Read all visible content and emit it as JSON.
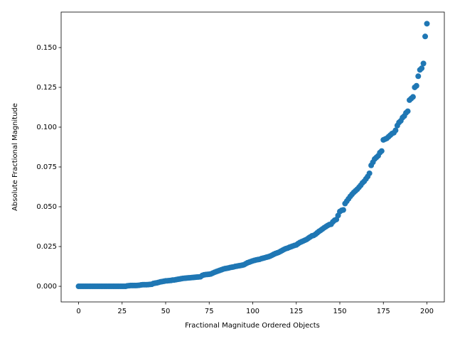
{
  "chart_data": {
    "type": "scatter",
    "x_label": "Fractional Magnitude Ordered Objects",
    "y_label": "Absolute Fractional Magnitude",
    "color": "#1f77b4",
    "xlim": [
      -10,
      210
    ],
    "ylim": [
      -0.0098,
      0.1723
    ],
    "xticks": [
      0,
      25,
      50,
      75,
      100,
      125,
      150,
      175,
      200
    ],
    "yticks": [
      {
        "value": 0,
        "label": "0.000"
      },
      0.025,
      {
        "value": 0.05,
        "label": "0.050"
      },
      0.075,
      {
        "value": 0.1,
        "label": "0.100"
      },
      0.125,
      {
        "value": 0.15,
        "label": "0.150"
      }
    ],
    "x": [
      0,
      1,
      2,
      3,
      4,
      5,
      6,
      7,
      8,
      9,
      10,
      11,
      12,
      13,
      14,
      15,
      16,
      17,
      18,
      19,
      20,
      21,
      22,
      23,
      24,
      25,
      26,
      27,
      28,
      29,
      30,
      31,
      32,
      33,
      34,
      35,
      36,
      37,
      38,
      39,
      40,
      41,
      42,
      43,
      44,
      45,
      46,
      47,
      48,
      49,
      50,
      51,
      52,
      53,
      54,
      55,
      56,
      57,
      58,
      59,
      60,
      61,
      62,
      63,
      64,
      65,
      66,
      67,
      68,
      69,
      70,
      71,
      72,
      73,
      74,
      75,
      76,
      77,
      78,
      79,
      80,
      81,
      82,
      83,
      84,
      85,
      86,
      87,
      88,
      89,
      90,
      91,
      92,
      93,
      94,
      95,
      96,
      97,
      98,
      99,
      100,
      101,
      102,
      103,
      104,
      105,
      106,
      107,
      108,
      109,
      110,
      111,
      112,
      113,
      114,
      115,
      116,
      117,
      118,
      119,
      120,
      121,
      122,
      123,
      124,
      125,
      126,
      127,
      128,
      129,
      130,
      131,
      132,
      133,
      134,
      135,
      136,
      137,
      138,
      139,
      140,
      141,
      142,
      143,
      144,
      145,
      146,
      147,
      148,
      149,
      150,
      151,
      152,
      153,
      154,
      155,
      156,
      157,
      158,
      159,
      160,
      161,
      162,
      163,
      164,
      165,
      166,
      167,
      168,
      169,
      170,
      171,
      172,
      173,
      174,
      175,
      176,
      177,
      178,
      179,
      180,
      181,
      182,
      183,
      184,
      185,
      186,
      187,
      188,
      189,
      190,
      191,
      192,
      193,
      194,
      195,
      196,
      197,
      198,
      199,
      200
    ],
    "values": [
      0,
      0,
      0,
      0,
      0,
      0,
      0,
      0,
      0,
      0,
      0,
      0,
      0,
      0,
      0,
      0,
      0,
      0,
      0,
      0,
      0,
      0,
      0,
      0,
      0,
      0,
      0,
      0,
      0.0003,
      0.0004,
      0.0005,
      0.0005,
      0.0005,
      0.0005,
      0.0006,
      0.0007,
      0.0009,
      0.001,
      0.001,
      0.001,
      0.0011,
      0.0012,
      0.0013,
      0.0018,
      0.002,
      0.0022,
      0.0025,
      0.0028,
      0.003,
      0.0032,
      0.0034,
      0.0035,
      0.0036,
      0.0037,
      0.0039,
      0.004,
      0.0042,
      0.0044,
      0.0046,
      0.0048,
      0.005,
      0.0051,
      0.0052,
      0.0053,
      0.0054,
      0.0055,
      0.0056,
      0.0057,
      0.0058,
      0.0059,
      0.006,
      0.0068,
      0.0072,
      0.0074,
      0.0075,
      0.0076,
      0.0078,
      0.0083,
      0.0088,
      0.0092,
      0.0096,
      0.01,
      0.0104,
      0.0108,
      0.0111,
      0.0113,
      0.0115,
      0.0118,
      0.012,
      0.0122,
      0.0125,
      0.0127,
      0.0129,
      0.0131,
      0.0133,
      0.0136,
      0.0142,
      0.0148,
      0.0152,
      0.0156,
      0.016,
      0.0163,
      0.0166,
      0.0168,
      0.017,
      0.0174,
      0.0177,
      0.018,
      0.0183,
      0.0186,
      0.019,
      0.0195,
      0.0201,
      0.0206,
      0.021,
      0.0214,
      0.022,
      0.0226,
      0.0232,
      0.0237,
      0.024,
      0.0245,
      0.0249,
      0.0253,
      0.0257,
      0.026,
      0.0268,
      0.0275,
      0.028,
      0.0285,
      0.029,
      0.0295,
      0.0303,
      0.031,
      0.0317,
      0.032,
      0.0327,
      0.0336,
      0.0345,
      0.0352,
      0.036,
      0.0368,
      0.0375,
      0.0382,
      0.0388,
      0.039,
      0.0405,
      0.0415,
      0.042,
      0.0445,
      0.047,
      0.0477,
      0.048,
      0.052,
      0.0535,
      0.055,
      0.0565,
      0.0578,
      0.059,
      0.06,
      0.061,
      0.0622,
      0.0635,
      0.065,
      0.066,
      0.0675,
      0.069,
      0.071,
      0.076,
      0.078,
      0.08,
      0.081,
      0.082,
      0.084,
      0.085,
      0.092,
      0.0925,
      0.093,
      0.094,
      0.095,
      0.096,
      0.0965,
      0.098,
      0.101,
      0.103,
      0.104,
      0.106,
      0.107,
      0.109,
      0.11,
      0.117,
      0.118,
      0.119,
      0.125,
      0.126,
      0.132,
      0.136,
      0.137,
      0.14,
      0.157,
      0.165
    ]
  }
}
